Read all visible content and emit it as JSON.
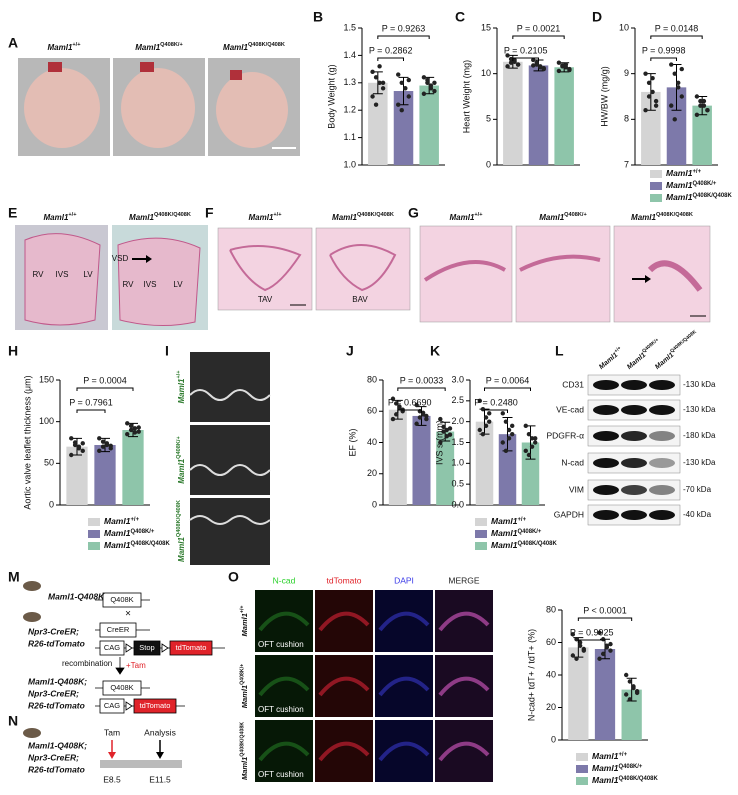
{
  "figure": {
    "panel_letters": [
      "A",
      "B",
      "C",
      "D",
      "E",
      "F",
      "G",
      "H",
      "I",
      "J",
      "K",
      "L",
      "M",
      "N",
      "O"
    ],
    "A": {
      "labels": [
        {
          "gene": "Maml1",
          "allele": "+/+"
        },
        {
          "gene": "Maml1",
          "allele": "Q408K/+"
        },
        {
          "gene": "Maml1",
          "allele": "Q408K/Q408K"
        }
      ]
    },
    "E": {
      "labels": [
        {
          "gene": "Maml1",
          "allele": "+/+"
        },
        {
          "gene": "Maml1",
          "allele": "Q408K/Q408K"
        }
      ],
      "annotations": [
        "RV",
        "IVS",
        "LV",
        "VSD",
        "RV",
        "IVS",
        "LV"
      ]
    },
    "F": {
      "labels": [
        {
          "gene": "Maml1",
          "allele": "+/+"
        },
        {
          "gene": "Maml1",
          "allele": "Q408K/Q408K"
        }
      ],
      "annotations": [
        "TAV",
        "BAV"
      ]
    },
    "G": {
      "labels": [
        {
          "gene": "Maml1",
          "allele": "+/+"
        },
        {
          "gene": "Maml1",
          "allele": "Q408K/+"
        },
        {
          "gene": "Maml1",
          "allele": "Q408K/Q408K"
        }
      ]
    },
    "I": {
      "labels": [
        {
          "gene": "Maml1",
          "allele": "+/+"
        },
        {
          "gene": "Maml1",
          "allele": "Q408K/+"
        },
        {
          "gene": "Maml1",
          "allele": "Q408K/Q408K"
        }
      ]
    },
    "L": {
      "lanes": [
        {
          "gene": "Maml1",
          "allele": "+/+"
        },
        {
          "gene": "Maml1",
          "allele": "Q408K/+"
        },
        {
          "gene": "Maml1",
          "allele": "Q408K/Q408K"
        }
      ],
      "proteins": [
        "CD31",
        "VE-cad",
        "PDGFR-α",
        "N-cad",
        "VIM",
        "GAPDH"
      ],
      "sizes": [
        "-130 kDa",
        "-130 kDa",
        "-180 kDa",
        "-130 kDa",
        "-70 kDa",
        "-40 kDa"
      ]
    },
    "M": {
      "mouse1": "Maml1-Q408K",
      "allele1": "Q408K",
      "cross": "×",
      "mouse2": [
        "Npr3-CreER;",
        "R26-tdTomato"
      ],
      "creer": "CreER",
      "cag": "CAG",
      "stop": "Stop",
      "tdtomato": "tdTomato",
      "recombination": "recombination",
      "tam": "+Tam",
      "result": [
        "Maml1-Q408K;",
        "Npr3-CreER;",
        "R26-tdTomato"
      ],
      "result_allele": "Q408K",
      "result_cag": "CAG",
      "result_tdtomato": "tdTomato"
    },
    "N": {
      "mouse": [
        "Maml1-Q408K;",
        "Npr3-CreER;",
        "R26-tdTomato"
      ],
      "tam": "Tam",
      "analysis": "Analysis",
      "start": "E8.5",
      "end": "E11.5"
    },
    "O": {
      "channels": [
        "N-cad",
        "tdTomato",
        "DAPI",
        "MERGE"
      ],
      "row_labels": [
        {
          "gene": "Maml1",
          "allele": "+/+"
        },
        {
          "gene": "Maml1",
          "allele": "Q408K/+"
        },
        {
          "gene": "Maml1",
          "allele": "Q408K/Q408K"
        }
      ],
      "region": [
        "OFT cushion",
        "OFT cushion",
        "OFT cushion"
      ]
    }
  },
  "chart_data": [
    {
      "type": "bar",
      "ylabel": "Body Weight (g)",
      "values": [
        1.3,
        1.27,
        1.29
      ],
      "errors": [
        0.04,
        0.05,
        0.03
      ],
      "points": [
        [
          1.34,
          1.32,
          1.3,
          1.28,
          1.25,
          1.22,
          1.36,
          1.3
        ],
        [
          1.33,
          1.3,
          1.28,
          1.25,
          1.22,
          1.2,
          1.28,
          1.31
        ],
        [
          1.32,
          1.3,
          1.29,
          1.27,
          1.26,
          1.31,
          1.28,
          1.3
        ]
      ],
      "colors": [
        "#d4d4d4",
        "#7d79aa",
        "#8ec5aa"
      ],
      "ylim": [
        1.0,
        1.5
      ],
      "yticks": [
        {
          "value": 1,
          "label": "1.0"
        },
        1.1,
        1.2,
        1.3,
        1.4,
        1.5
      ],
      "pvalues": [
        "P = 0.2862",
        "P = 0.9263"
      ]
    },
    {
      "type": "bar",
      "ylabel": "Heart Weight (mg)",
      "values": [
        11.3,
        10.9,
        10.7
      ],
      "errors": [
        0.7,
        0.6,
        0.5
      ],
      "points": [
        [
          12.0,
          11.6,
          11.3,
          11.0,
          10.8,
          11.2,
          11.5,
          11.0
        ],
        [
          11.5,
          11.2,
          10.8,
          10.5,
          10.9,
          11.0,
          10.7,
          10.6
        ],
        [
          11.2,
          10.9,
          10.7,
          10.4,
          10.3,
          10.8,
          11.0,
          10.5
        ]
      ],
      "colors": [
        "#d4d4d4",
        "#7d79aa",
        "#8ec5aa"
      ],
      "ylim": [
        0,
        15
      ],
      "yticks": [
        0,
        5,
        10,
        15
      ],
      "pvalues": [
        "P = 0.2105",
        "P = 0.0021"
      ]
    },
    {
      "type": "bar",
      "ylabel": "HW/BW (mg/g)",
      "values": [
        8.6,
        8.7,
        8.3
      ],
      "errors": [
        0.4,
        0.5,
        0.2
      ],
      "points": [
        [
          9.0,
          8.8,
          8.6,
          8.3,
          8.2,
          8.5,
          8.9,
          8.4
        ],
        [
          9.2,
          9.0,
          8.8,
          8.5,
          8.3,
          8.0,
          8.7,
          9.1
        ],
        [
          8.5,
          8.4,
          8.3,
          8.2,
          8.1,
          8.3,
          8.4,
          8.2
        ]
      ],
      "colors": [
        "#d4d4d4",
        "#7d79aa",
        "#8ec5aa"
      ],
      "ylim": [
        7,
        10
      ],
      "yticks": [
        7,
        8,
        9,
        10
      ],
      "pvalues": [
        "P = 0.9998",
        "P = 0.0148"
      ],
      "legend": [
        {
          "gene": "Maml1",
          "allele": "+/+"
        },
        {
          "gene": "Maml1",
          "allele": "Q408K/+"
        },
        {
          "gene": "Maml1",
          "allele": "Q408K/Q408K"
        }
      ]
    },
    {
      "type": "bar",
      "ylabel": "Aortic valve leaflet thickness (μm)",
      "values": [
        70,
        72,
        90
      ],
      "errors": [
        10,
        8,
        8
      ],
      "points": [
        [
          80,
          75,
          70,
          65,
          60,
          72,
          68,
          74
        ],
        [
          80,
          76,
          72,
          68,
          65,
          70,
          74,
          71
        ],
        [
          98,
          95,
          92,
          88,
          85,
          90,
          87,
          93
        ]
      ],
      "colors": [
        "#d4d4d4",
        "#7d79aa",
        "#8ec5aa"
      ],
      "ylim": [
        0,
        150
      ],
      "yticks": [
        0,
        50,
        100,
        150
      ],
      "pvalues": [
        "P = 0.7961",
        "P = 0.0004"
      ],
      "legend": [
        {
          "gene": "Maml1",
          "allele": "+/+"
        },
        {
          "gene": "Maml1",
          "allele": "Q408K/+"
        },
        {
          "gene": "Maml1",
          "allele": "Q408K/Q408K"
        }
      ]
    },
    {
      "type": "bar",
      "ylabel": "EF (%)",
      "values": [
        61,
        57,
        47
      ],
      "errors": [
        6,
        6,
        6
      ],
      "points": [
        [
          68,
          65,
          62,
          60,
          55,
          58,
          63,
          61
        ],
        [
          64,
          60,
          58,
          55,
          52,
          56,
          59,
          57
        ],
        [
          55,
          50,
          48,
          45,
          40,
          47,
          44,
          49
        ]
      ],
      "colors": [
        "#d4d4d4",
        "#7d79aa",
        "#8ec5aa"
      ],
      "ylim": [
        0,
        80
      ],
      "yticks": [
        0,
        20,
        40,
        60,
        80
      ],
      "pvalues": [
        "P = 0.6690",
        "P = 0.0033"
      ]
    },
    {
      "type": "bar",
      "ylabel": "IVS s (mm)",
      "values": [
        2.0,
        1.7,
        1.5
      ],
      "errors": [
        0.3,
        0.4,
        0.4
      ],
      "points": [
        [
          2.5,
          2.3,
          2.1,
          2.0,
          1.8,
          1.7,
          1.9,
          2.2
        ],
        [
          2.2,
          2.0,
          1.8,
          1.7,
          1.5,
          1.3,
          1.6,
          1.9
        ],
        [
          1.9,
          1.7,
          1.6,
          1.5,
          1.3,
          1.2,
          1.4,
          1.6
        ]
      ],
      "colors": [
        "#d4d4d4",
        "#7d79aa",
        "#8ec5aa"
      ],
      "ylim": [
        0,
        3
      ],
      "yticks": [
        {
          "value": 0,
          "label": "0.0"
        },
        0.5,
        {
          "value": 1,
          "label": "1.0"
        },
        1.5,
        {
          "value": 2,
          "label": "2.0"
        },
        2.5,
        {
          "value": 3,
          "label": "3.0"
        }
      ],
      "pvalues": [
        "P = 0.2480",
        "P = 0.0064"
      ],
      "legend": [
        {
          "gene": "Maml1",
          "allele": "+/+"
        },
        {
          "gene": "Maml1",
          "allele": "Q408K/+"
        },
        {
          "gene": "Maml1",
          "allele": "Q408K/Q408K"
        }
      ]
    },
    {
      "type": "bar",
      "ylabel": "N-cad+ tdT+ / tdT+ (%)",
      "values": [
        57,
        56,
        31
      ],
      "errors": [
        6,
        6,
        7
      ],
      "points": [
        [
          65,
          62,
          58,
          55,
          52,
          50,
          60,
          56
        ],
        [
          66,
          62,
          58,
          55,
          50,
          53,
          57,
          59
        ],
        [
          40,
          36,
          33,
          30,
          28,
          25,
          32,
          29
        ]
      ],
      "colors": [
        "#d4d4d4",
        "#7d79aa",
        "#8ec5aa"
      ],
      "ylim": [
        0,
        80
      ],
      "yticks": [
        0,
        20,
        40,
        60,
        80
      ],
      "pvalues": [
        "P = 0.9925",
        "P < 0.0001"
      ],
      "legend": [
        {
          "gene": "Maml1",
          "allele": "+/+"
        },
        {
          "gene": "Maml1",
          "allele": "Q408K/+"
        },
        {
          "gene": "Maml1",
          "allele": "Q408K/Q408K"
        }
      ]
    }
  ]
}
